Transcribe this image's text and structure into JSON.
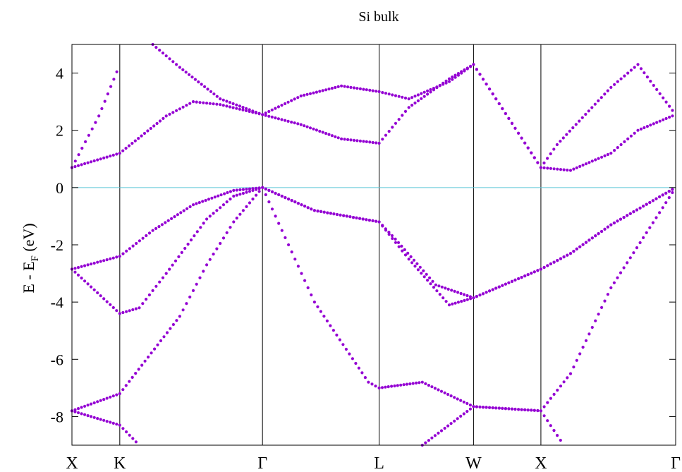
{
  "chart_data": {
    "type": "scatter",
    "title": "Si bulk",
    "ylabel_main": "E - E",
    "ylabel_sub": "F",
    "ylabel_tail": " (eV)",
    "xlabel": "",
    "ylim": [
      -9,
      5
    ],
    "yticks": [
      4,
      2,
      0,
      -2,
      -4,
      -6,
      -8
    ],
    "ytick_labels": [
      "4",
      "2",
      "0",
      "-2",
      "-4",
      "-6",
      "-8"
    ],
    "kpoint_positions": [
      0,
      0.355,
      1.414,
      2.28,
      2.98,
      3.48,
      4.48
    ],
    "kpoint_labels": [
      "X",
      "K",
      "Γ",
      "L",
      "W",
      "X",
      "Γ"
    ],
    "fermi_level": 0,
    "grid": false,
    "colors": {
      "bands": "#9400d3",
      "fermi": "#5ec8d8",
      "axes": "#000000"
    },
    "series": [
      {
        "x": [
          0,
          0.355,
          0.8,
          1.0,
          1.2,
          1.414,
          1.8,
          2.28,
          2.4,
          2.7,
          2.98,
          3.48,
          3.7,
          4.0,
          4.48
        ],
        "y": [
          -7.8,
          -7.2,
          -4.5,
          -2.7,
          -1.2,
          0,
          -0.8,
          -1.2,
          -1.8,
          -3.4,
          -3.85,
          -2.85,
          -2.3,
          -1.3,
          0
        ]
      },
      {
        "x": [
          0,
          0.355,
          0.6,
          0.9,
          1.2,
          1.414,
          1.8,
          2.28,
          2.5,
          2.8,
          2.98,
          3.48,
          3.7,
          4.0,
          4.48
        ],
        "y": [
          -2.85,
          -2.4,
          -1.5,
          -0.6,
          -0.1,
          0,
          -0.8,
          -1.2,
          -2.5,
          -4.1,
          -3.85,
          -2.85,
          -2.3,
          -1.3,
          0
        ]
      },
      {
        "x": [
          0,
          0.355,
          0.5,
          0.7,
          1.0,
          1.2,
          1.414,
          1.8,
          2.2,
          2.28,
          2.6,
          2.98,
          3.48,
          3.7,
          4.0,
          4.48
        ],
        "y": [
          -2.85,
          -4.4,
          -4.2,
          -3.0,
          -1.1,
          -0.3,
          0,
          -4.0,
          -6.8,
          -7.0,
          -6.8,
          -7.65,
          -7.8,
          -6.5,
          -3.5,
          0
        ]
      },
      {
        "x": [
          0,
          0.355,
          0.7,
          0.9,
          1.1,
          1.414,
          1.7,
          2.0,
          2.28,
          2.5,
          2.8,
          2.98,
          3.48,
          3.7,
          4.0,
          4.2,
          4.48
        ],
        "y": [
          0.7,
          1.2,
          2.5,
          3.0,
          2.9,
          2.55,
          2.2,
          1.7,
          1.55,
          2.8,
          3.8,
          4.3,
          0.7,
          0.6,
          1.2,
          2.0,
          2.55
        ]
      },
      {
        "x": [
          1.414,
          1.7,
          2.0,
          2.28,
          2.5,
          2.8,
          2.98,
          3.48,
          3.6,
          4.0,
          4.2,
          4.48
        ],
        "y": [
          2.55,
          3.2,
          3.55,
          3.35,
          3.1,
          3.7,
          4.3,
          0.7,
          1.5,
          3.5,
          4.3,
          2.55
        ]
      },
      {
        "x": [
          0,
          0.355,
          0.5
        ],
        "y": [
          -7.8,
          -8.3,
          -9.0
        ]
      },
      {
        "x": [
          0,
          0.2,
          0.355
        ],
        "y": [
          0.7,
          2.5,
          4.3
        ]
      },
      {
        "x": [
          0.6,
          0.8,
          1.1,
          1.414
        ],
        "y": [
          5.0,
          4.2,
          3.1,
          2.55
        ]
      },
      {
        "x": [
          2.6,
          2.98,
          3.48,
          3.65
        ],
        "y": [
          -9.0,
          -7.65,
          -7.8,
          -9.0
        ]
      }
    ]
  }
}
